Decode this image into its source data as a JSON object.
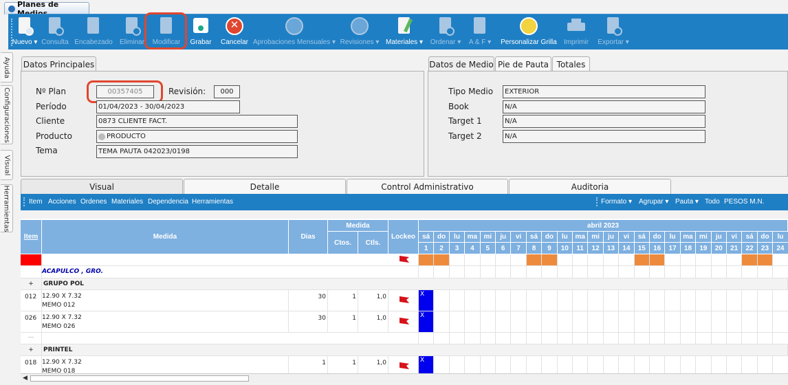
{
  "window_tab": "Planes de Medios",
  "toolbar": [
    {
      "label": "Nuevo ▾",
      "enabled": true,
      "icon": "new-document-icon"
    },
    {
      "label": "Consulta",
      "enabled": false,
      "icon": "query-document-icon"
    },
    {
      "label": "Encabezado",
      "enabled": false,
      "icon": "header-edit-icon"
    },
    {
      "label": "Eliminar",
      "enabled": false,
      "icon": "delete-document-icon"
    },
    {
      "label": "Modificar",
      "enabled": false,
      "icon": "modify-document-icon"
    },
    {
      "label": "Grabar",
      "enabled": true,
      "icon": "save-disk-icon"
    },
    {
      "label": "Cancelar",
      "enabled": true,
      "icon": "cancel-icon"
    },
    {
      "label": "Aprobaciones Mensuales ▾",
      "enabled": false,
      "icon": "approve-thumb-icon"
    },
    {
      "label": "Revisiones ▾",
      "enabled": false,
      "icon": "review-thumb-icon"
    },
    {
      "label": "Materiales ▾",
      "enabled": true,
      "icon": "materials-pencil-icon"
    },
    {
      "label": "Ordenar ▾",
      "enabled": false,
      "icon": "order-document-icon"
    },
    {
      "label": "A & F ▾",
      "enabled": false,
      "icon": "af-pencil-icon"
    },
    {
      "label": "Personalizar Grilla",
      "enabled": true,
      "icon": "grid-globe-icon"
    },
    {
      "label": "Imprimir",
      "enabled": false,
      "icon": "printer-icon"
    },
    {
      "label": "Exportar ▾",
      "enabled": false,
      "icon": "export-document-icon"
    }
  ],
  "side_tabs": [
    "Ayuda",
    "Configuraciones",
    "Visual",
    "Herramientas"
  ],
  "left_panel": {
    "tab": "Datos Principales",
    "plan_label": "Nº Plan",
    "plan_value": "00357405",
    "revision_label": "Revisión:",
    "revision_value": "000",
    "periodo_label": "Período",
    "periodo_value": "01/04/2023 - 30/04/2023",
    "cliente_label": "Cliente",
    "cliente_value": "0873 CLIENTE FACT.",
    "producto_label": "Producto",
    "producto_value": "PRODUCTO",
    "tema_label": "Tema",
    "tema_value": "TEMA PAUTA 042023/0198"
  },
  "right_panel": {
    "tabs": [
      "Datos de Medio",
      "Pie de Pauta",
      "Totales"
    ],
    "tipo_label": "Tipo Medio",
    "tipo_value": "EXTERIOR",
    "book_label": "Book",
    "book_value": "N/A",
    "target1_label": "Target 1",
    "target1_value": "N/A",
    "target2_label": "Target 2",
    "target2_value": "N/A"
  },
  "main_tabs": [
    "Visual",
    "Detalle",
    "Control Administrativo",
    "Auditoria"
  ],
  "subbar_left": [
    "Item",
    "Acciones",
    "Ordenes",
    "Materiales",
    "Dependencia",
    "Herramientas"
  ],
  "subbar_right": [
    "Formato ▾",
    "Agrupar ▾",
    "Pauta ▾",
    "Todo",
    "PESOS M.N."
  ],
  "grid": {
    "headers": {
      "item": "Item",
      "medida": "Medida",
      "dias": "Dias",
      "medida_group": "Medida",
      "ctos": "Ctos.",
      "ctls": "Ctls.",
      "lockeo": "Lockeo",
      "month": "abril 2023"
    },
    "weekdays": [
      "sá",
      "do",
      "lu",
      "ma",
      "mi",
      "ju",
      "vi",
      "sá",
      "do",
      "lu",
      "ma",
      "mi",
      "ju",
      "vi",
      "sá",
      "do",
      "lu",
      "ma",
      "mi",
      "ju",
      "vi",
      "sá",
      "do",
      "lu"
    ],
    "days": [
      "1",
      "2",
      "3",
      "4",
      "5",
      "6",
      "7",
      "8",
      "9",
      "10",
      "11",
      "12",
      "13",
      "14",
      "15",
      "16",
      "17",
      "18",
      "19",
      "20",
      "21",
      "22",
      "23",
      "24"
    ],
    "weekend_days": [
      1,
      2,
      8,
      9,
      15,
      16,
      22,
      23
    ],
    "city": "ACAPULCO , GRO.",
    "group1": "GRUPO POL",
    "group2": "PRINTEL",
    "plus": "+",
    "ellipsis": "...",
    "mark": "X",
    "rows": [
      {
        "item": "012",
        "medida": "12.90 X 7.32",
        "memo": "MEMO 012",
        "dias": "30",
        "ctos": "1",
        "ctls": "1,0"
      },
      {
        "item": "026",
        "medida": "12.90 X 7.32",
        "memo": "MEMO 026",
        "dias": "30",
        "ctos": "1",
        "ctls": "1,0"
      },
      {
        "item": "018",
        "medida": "12.90 X 7.32",
        "memo": "MEMO 018",
        "dias": "1",
        "ctos": "1",
        "ctls": "1,0"
      }
    ]
  },
  "colors": {
    "accent": "#1f7fc4",
    "header": "#7eb0e0",
    "weekend": "#ee8a3c",
    "selected": "#0000ee",
    "highlight": "#e0462f"
  }
}
